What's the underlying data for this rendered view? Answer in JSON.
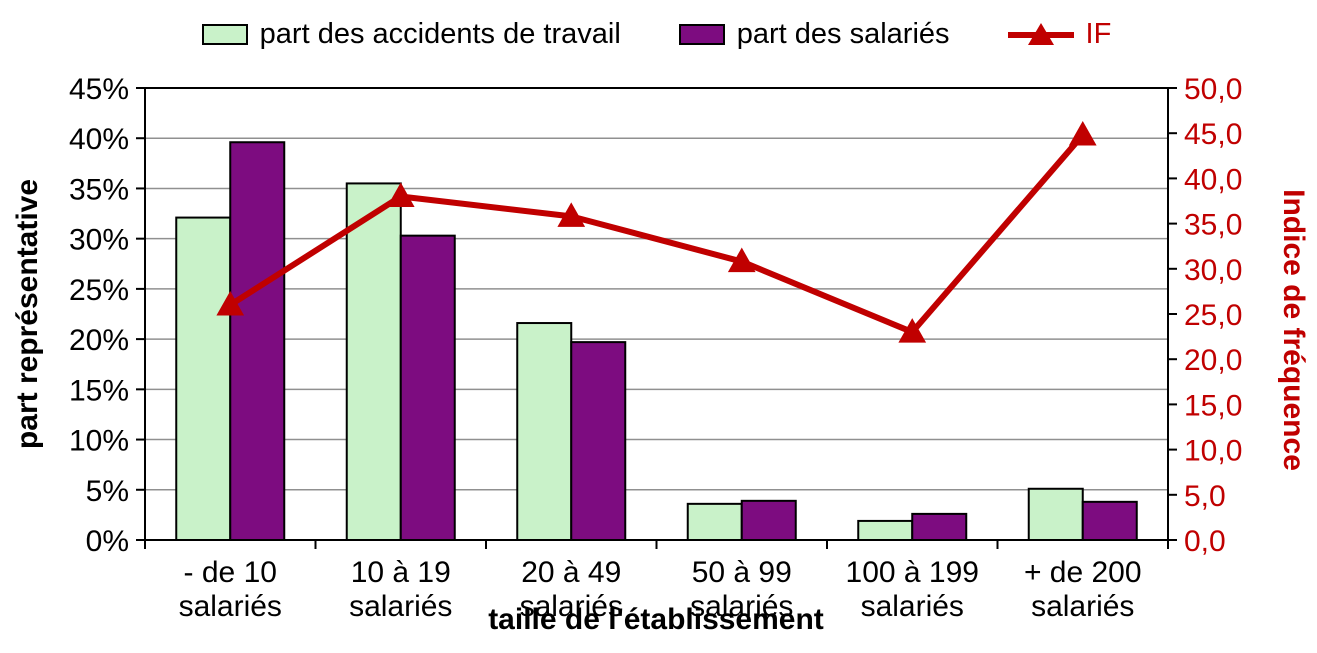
{
  "accent_colors": {
    "bar_accidents_fill": "#c9f2c9",
    "bar_salaries_fill": "#7d0c80",
    "if_line": "#c00000",
    "gridline": "#909090",
    "axis_border": "#000000"
  },
  "chart_data": {
    "type": "bar-line-combo",
    "categories": [
      "- de 10 salariés",
      "10 à 19 salariés",
      "20 à 49 salariés",
      "50 à 99 salariés",
      "100 à 199 salariés",
      "+ de 200 salariés"
    ],
    "series": [
      {
        "name": "part des accidents de travail",
        "type": "bar",
        "axis": "left",
        "color": "#c9f2c9",
        "values": [
          32.1,
          35.5,
          21.6,
          3.6,
          1.9,
          5.1
        ]
      },
      {
        "name": "part des salariés",
        "type": "bar",
        "axis": "left",
        "color": "#7d0c80",
        "values": [
          39.6,
          30.3,
          19.7,
          3.9,
          2.6,
          3.8
        ]
      },
      {
        "name": "IF",
        "type": "line",
        "axis": "right",
        "color": "#c00000",
        "values": [
          26.0,
          38.0,
          35.8,
          30.8,
          23.0,
          44.8
        ]
      }
    ],
    "left_axis": {
      "title": "part représentative",
      "min": 0,
      "max": 45,
      "step": 5,
      "tick_format": "percent",
      "tick_labels": [
        "45%",
        "40%",
        "35%",
        "30%",
        "25%",
        "20%",
        "15%",
        "10%",
        "5%",
        "0%"
      ]
    },
    "right_axis": {
      "title": "Indice de fréquence",
      "min": 0,
      "max": 50,
      "step": 5,
      "tick_format": "decimal-comma",
      "tick_labels": [
        "50,0",
        "45,0",
        "40,0",
        "35,0",
        "30,0",
        "25,0",
        "20,0",
        "15,0",
        "10,0",
        "5,0",
        "0,0"
      ]
    },
    "x_axis": {
      "title": "taille de l'établissement"
    },
    "grid": true,
    "legend_position": "top"
  }
}
